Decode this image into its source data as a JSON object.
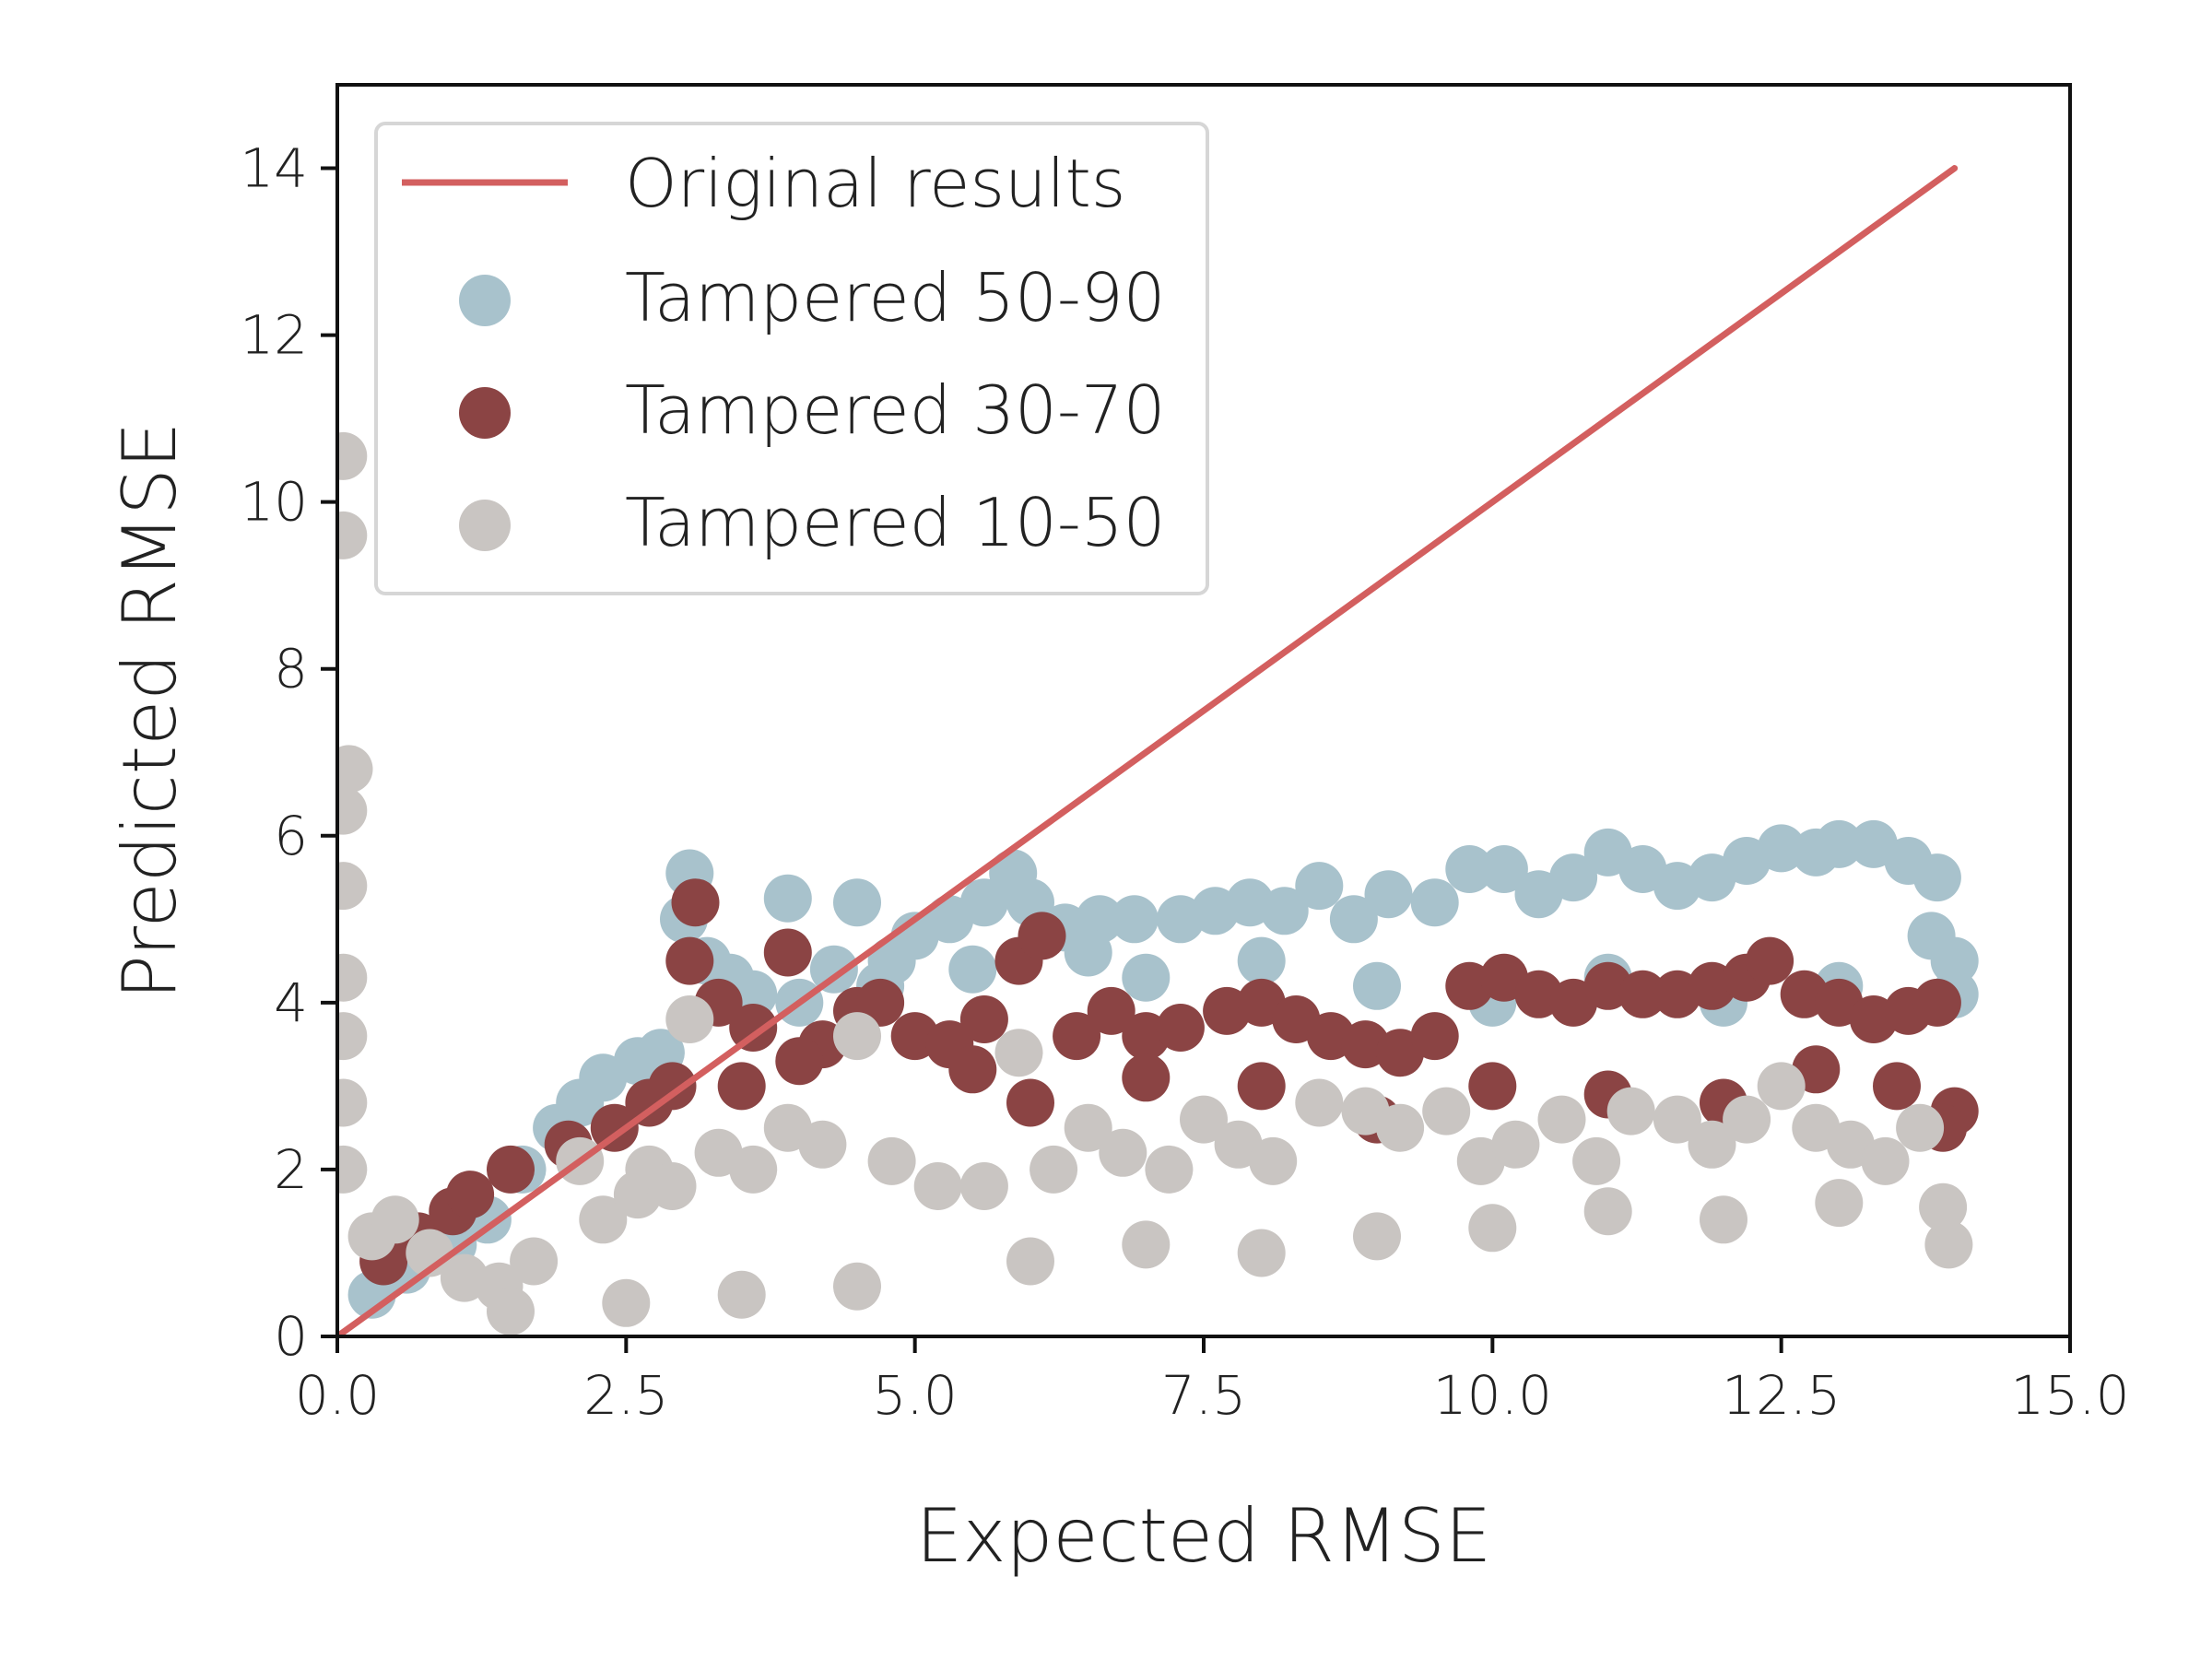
{
  "chart_data": {
    "type": "scatter",
    "title": "",
    "xlabel": "Expected RMSE",
    "ylabel": "Predicted RMSE",
    "xlim": [
      0,
      15
    ],
    "ylim": [
      0,
      15
    ],
    "xticks": [
      0,
      2.5,
      5,
      7.5,
      10,
      12.5,
      15
    ],
    "xtick_labels": [
      "0.0",
      "2.5",
      "5.0",
      "7.5",
      "10.0",
      "12.5",
      "15.0"
    ],
    "yticks": [
      0,
      2,
      4,
      6,
      8,
      10,
      12,
      14
    ],
    "ytick_labels": [
      "0",
      "2",
      "4",
      "6",
      "8",
      "10",
      "12",
      "14"
    ],
    "grid": false,
    "legend": "top-left",
    "line": {
      "name": "Original results",
      "color": "#d35f5f",
      "x": [
        0,
        14
      ],
      "y": [
        0,
        14
      ]
    },
    "series": [
      {
        "name": "Tampered 50-90",
        "color": "#a8c2cc",
        "x": [
          0.3,
          0.6,
          1.0,
          1.3,
          1.6,
          1.9,
          2.1,
          2.3,
          2.6,
          2.8,
          3.0,
          3.05,
          3.2,
          3.4,
          3.6,
          3.9,
          4.0,
          4.3,
          4.5,
          4.8,
          5.0,
          5.3,
          5.6,
          5.85,
          6.0,
          6.3,
          6.6,
          6.9,
          7.3,
          7.6,
          7.9,
          8.2,
          8.5,
          8.8,
          9.1,
          9.5,
          9.8,
          10.1,
          10.4,
          10.7,
          11.0,
          11.3,
          11.6,
          11.9,
          12.2,
          12.5,
          12.8,
          13.0,
          13.3,
          13.6,
          13.85,
          14.0,
          14.0,
          13.8,
          13.0,
          12.0,
          11.0,
          10.0,
          9.0,
          8.0,
          7.0,
          6.5,
          5.5,
          4.7
        ],
        "y": [
          0.5,
          0.8,
          1.1,
          1.4,
          2.0,
          2.5,
          2.8,
          3.1,
          3.3,
          3.4,
          5.0,
          5.55,
          4.5,
          4.3,
          4.1,
          5.25,
          4.0,
          4.4,
          5.2,
          4.5,
          4.8,
          5.0,
          5.2,
          5.55,
          5.2,
          4.9,
          5.0,
          5.0,
          5.0,
          5.1,
          5.2,
          5.1,
          5.4,
          5.0,
          5.3,
          5.2,
          5.6,
          5.6,
          5.3,
          5.5,
          5.8,
          5.6,
          5.4,
          5.5,
          5.7,
          5.85,
          5.8,
          5.9,
          5.9,
          5.7,
          5.5,
          4.5,
          4.1,
          4.8,
          4.2,
          4.0,
          4.3,
          4.0,
          4.2,
          4.5,
          4.3,
          4.6,
          4.4,
          4.2
        ]
      },
      {
        "name": "Tampered 30-70",
        "color": "#8b4444",
        "x": [
          0.4,
          0.7,
          1.0,
          1.15,
          1.5,
          2.0,
          2.4,
          2.7,
          2.9,
          3.05,
          3.1,
          3.3,
          3.6,
          3.9,
          4.2,
          4.5,
          4.7,
          5.0,
          5.3,
          5.6,
          5.9,
          6.1,
          6.4,
          6.7,
          7.0,
          7.3,
          7.7,
          8.0,
          8.3,
          8.6,
          8.9,
          9.2,
          9.5,
          9.8,
          10.1,
          10.4,
          10.7,
          11.0,
          11.3,
          11.6,
          11.9,
          12.2,
          12.4,
          12.7,
          13.0,
          13.3,
          13.6,
          13.85,
          14.0,
          13.9,
          13.5,
          12.8,
          12.0,
          11.0,
          10.0,
          9.0,
          8.0,
          7.0,
          6.0,
          5.5,
          4.0,
          3.5
        ],
        "y": [
          0.9,
          1.2,
          1.5,
          1.7,
          2.0,
          2.3,
          2.5,
          2.8,
          3.0,
          4.5,
          5.2,
          4.0,
          3.7,
          4.6,
          3.5,
          3.9,
          4.0,
          3.6,
          3.5,
          3.8,
          4.5,
          4.8,
          3.6,
          3.9,
          3.6,
          3.7,
          3.9,
          4.0,
          3.8,
          3.6,
          3.5,
          3.4,
          3.6,
          4.2,
          4.3,
          4.1,
          4.0,
          4.2,
          4.1,
          4.1,
          4.2,
          4.3,
          4.5,
          4.1,
          4.0,
          3.8,
          3.9,
          4.0,
          2.7,
          2.5,
          3.0,
          3.2,
          2.8,
          2.9,
          3.0,
          2.6,
          3.0,
          3.1,
          2.8,
          3.2,
          3.3,
          3.0
        ]
      },
      {
        "name": "Tampered 10-50",
        "color": "#c9c5c2",
        "x": [
          0.05,
          0.05,
          0.1,
          0.05,
          0.05,
          0.05,
          0.05,
          0.05,
          0.05,
          0.3,
          0.5,
          0.8,
          1.1,
          1.4,
          1.7,
          2.1,
          2.3,
          2.6,
          2.7,
          2.9,
          3.05,
          3.3,
          3.6,
          3.9,
          4.2,
          4.5,
          4.8,
          5.2,
          5.6,
          5.9,
          6.2,
          6.5,
          6.8,
          7.2,
          7.5,
          7.8,
          8.1,
          8.5,
          8.9,
          9.2,
          9.6,
          9.9,
          10.2,
          10.6,
          10.9,
          11.2,
          11.6,
          11.9,
          12.2,
          12.5,
          12.8,
          13.1,
          13.4,
          13.7,
          13.95,
          13.9,
          13.0,
          12.0,
          11.0,
          10.0,
          9.0,
          8.0,
          7.0,
          6.0,
          4.5,
          3.5,
          2.5,
          1.5
        ],
        "y": [
          10.55,
          9.6,
          6.8,
          6.3,
          5.4,
          4.3,
          3.6,
          2.8,
          2.0,
          1.2,
          1.4,
          1.0,
          0.7,
          0.6,
          0.9,
          2.1,
          1.4,
          1.7,
          2.0,
          1.8,
          3.8,
          2.2,
          2.0,
          2.5,
          2.3,
          3.6,
          2.1,
          1.8,
          1.8,
          3.4,
          2.0,
          2.5,
          2.2,
          2.0,
          2.6,
          2.3,
          2.1,
          2.8,
          2.7,
          2.5,
          2.7,
          2.1,
          2.3,
          2.6,
          2.1,
          2.7,
          2.6,
          2.3,
          2.6,
          3.0,
          2.5,
          2.3,
          2.1,
          2.5,
          1.1,
          1.55,
          1.6,
          1.4,
          1.5,
          1.3,
          1.2,
          1.0,
          1.1,
          0.9,
          0.6,
          0.5,
          0.4,
          0.3
        ]
      }
    ]
  }
}
